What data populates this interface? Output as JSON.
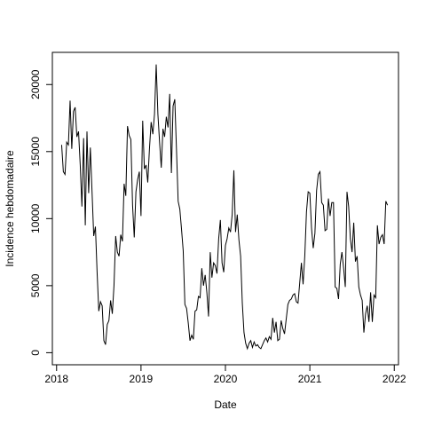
{
  "chart_data": {
    "type": "line",
    "xlabel": "Date",
    "ylabel": "Incidence hebdomadaire",
    "x": [
      2018.06,
      2018.08,
      2018.1,
      2018.12,
      2018.14,
      2018.16,
      2018.18,
      2018.2,
      2018.22,
      2018.24,
      2018.26,
      2018.28,
      2018.3,
      2018.32,
      2018.34,
      2018.36,
      2018.38,
      2018.4,
      2018.42,
      2018.44,
      2018.46,
      2018.48,
      2018.5,
      2018.52,
      2018.54,
      2018.56,
      2018.58,
      2018.6,
      2018.62,
      2018.64,
      2018.66,
      2018.68,
      2018.7,
      2018.72,
      2018.74,
      2018.76,
      2018.78,
      2018.8,
      2018.82,
      2018.84,
      2018.86,
      2018.88,
      2018.9,
      2018.92,
      2018.94,
      2018.96,
      2018.98,
      2019.0,
      2019.02,
      2019.04,
      2019.06,
      2019.08,
      2019.1,
      2019.12,
      2019.14,
      2019.16,
      2019.18,
      2019.2,
      2019.22,
      2019.24,
      2019.26,
      2019.28,
      2019.3,
      2019.32,
      2019.34,
      2019.36,
      2019.38,
      2019.4,
      2019.42,
      2019.44,
      2019.46,
      2019.48,
      2019.5,
      2019.52,
      2019.54,
      2019.56,
      2019.58,
      2019.6,
      2019.62,
      2019.64,
      2019.66,
      2019.68,
      2019.7,
      2019.72,
      2019.74,
      2019.76,
      2019.78,
      2019.8,
      2019.82,
      2019.84,
      2019.86,
      2019.88,
      2019.9,
      2019.92,
      2019.94,
      2019.96,
      2019.98,
      2020.0,
      2020.02,
      2020.04,
      2020.06,
      2020.08,
      2020.1,
      2020.12,
      2020.14,
      2020.16,
      2020.18,
      2020.2,
      2020.22,
      2020.24,
      2020.26,
      2020.28,
      2020.3,
      2020.32,
      2020.34,
      2020.36,
      2020.38,
      2020.4,
      2020.42,
      2020.44,
      2020.46,
      2020.48,
      2020.5,
      2020.52,
      2020.54,
      2020.56,
      2020.58,
      2020.6,
      2020.62,
      2020.64,
      2020.66,
      2020.68,
      2020.7,
      2020.72,
      2020.74,
      2020.76,
      2020.78,
      2020.8,
      2020.82,
      2020.84,
      2020.86,
      2020.88,
      2020.9,
      2020.92,
      2020.94,
      2020.96,
      2020.98,
      2021.0,
      2021.02,
      2021.04,
      2021.06,
      2021.08,
      2021.1,
      2021.12,
      2021.14,
      2021.16,
      2021.18,
      2021.2,
      2021.22,
      2021.24,
      2021.26,
      2021.28,
      2021.3,
      2021.32,
      2021.34,
      2021.36,
      2021.38,
      2021.4,
      2021.42,
      2021.44,
      2021.46,
      2021.48,
      2021.5,
      2021.52,
      2021.54,
      2021.56,
      2021.58,
      2021.6,
      2021.62,
      2021.64,
      2021.66,
      2021.68,
      2021.7,
      2021.72,
      2021.74,
      2021.76,
      2021.78,
      2021.8,
      2021.82,
      2021.84,
      2021.86,
      2021.88,
      2021.9,
      2021.92
    ],
    "values": [
      15500,
      13500,
      13300,
      15700,
      15500,
      18800,
      15200,
      18000,
      18300,
      16100,
      16500,
      14000,
      10900,
      16000,
      9500,
      16500,
      11900,
      15300,
      12000,
      8700,
      9400,
      6000,
      3100,
      3800,
      3500,
      900,
      600,
      2100,
      2400,
      3900,
      2900,
      5000,
      8700,
      7500,
      7200,
      8800,
      8300,
      12600,
      11700,
      16900,
      16200,
      15900,
      11000,
      8600,
      12000,
      12900,
      13500,
      10200,
      17300,
      13700,
      14000,
      12700,
      15200,
      17200,
      16300,
      17800,
      21500,
      17800,
      15700,
      13800,
      16700,
      16100,
      17600,
      16800,
      19300,
      13400,
      18400,
      18900,
      15200,
      11300,
      10700,
      9200,
      7600,
      3600,
      3300,
      2200,
      900,
      1300,
      1000,
      3100,
      3200,
      4200,
      4100,
      6300,
      5000,
      5800,
      4500,
      2700,
      7500,
      5600,
      6700,
      6500,
      5900,
      8500,
      9900,
      6700,
      6000,
      8000,
      8500,
      9300,
      9000,
      10300,
      13600,
      9000,
      10300,
      8400,
      7200,
      3700,
      1500,
      700,
      300,
      700,
      900,
      400,
      800,
      500,
      600,
      400,
      300,
      600,
      900,
      1100,
      800,
      1200,
      1000,
      2600,
      1500,
      2300,
      900,
      1000,
      2400,
      1800,
      1400,
      2500,
      3600,
      3900,
      4000,
      4300,
      4400,
      3800,
      3700,
      5200,
      6700,
      5100,
      7200,
      10500,
      12000,
      11900,
      9300,
      7800,
      8900,
      12100,
      13300,
      13500,
      11200,
      11000,
      9100,
      9200,
      11500,
      10200,
      11200,
      11200,
      4900,
      4800,
      4000,
      6600,
      7500,
      6300,
      4900,
      12000,
      10900,
      8500,
      7500,
      9700,
      6800,
      7200,
      4900,
      4300,
      3900,
      1500,
      2900,
      3500,
      2300,
      4500,
      2300,
      4300,
      4100,
      9500,
      8100,
      8600,
      8800,
      8100,
      11300,
      11000
    ],
    "color": "#000000",
    "xlim": [
      2017.95,
      2022.05
    ],
    "xticks": [
      2018,
      2019,
      2020,
      2021,
      2022
    ],
    "ylim": [
      -900,
      22400
    ],
    "yticks": [
      0,
      5000,
      10000,
      15000,
      20000
    ]
  }
}
